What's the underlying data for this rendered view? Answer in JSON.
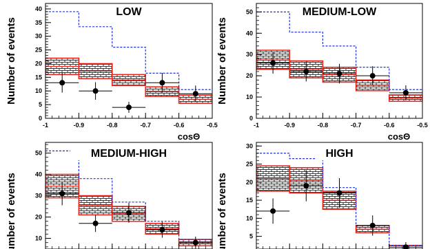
{
  "chart_data": [
    {
      "type": "histogram",
      "title": "LOW",
      "xlabel": "cosΘ",
      "ylabel": "Number of events",
      "xlim": [
        -1,
        -0.5
      ],
      "ylim": [
        0,
        42
      ],
      "xticks": [
        "-1",
        "-0.9",
        "-0.8",
        "-0.7",
        "-0.6",
        "-0.5"
      ],
      "yticks": [
        "0",
        "5",
        "10",
        "15",
        "20",
        "25",
        "30",
        "35",
        "40"
      ],
      "bin_edges": [
        -1.0,
        -0.9,
        -0.8,
        -0.7,
        -0.6,
        -0.5
      ],
      "series": [
        {
          "kind": "dashed-histogram",
          "values": [
            39,
            33.5,
            26,
            16.5,
            10.5
          ]
        },
        {
          "kind": "band",
          "low": [
            16,
            14.5,
            12,
            8,
            5.5
          ],
          "high": [
            22,
            20,
            16,
            11.5,
            8.5
          ]
        },
        {
          "kind": "data-points",
          "x": [
            -0.95,
            -0.85,
            -0.75,
            -0.65,
            -0.55
          ],
          "y": [
            13,
            10,
            4,
            13,
            9
          ],
          "yerr": [
            3.6,
            3.2,
            2.0,
            3.6,
            3.0
          ]
        }
      ]
    },
    {
      "type": "histogram",
      "title": "MEDIUM-LOW",
      "xlabel": "cosΘ",
      "ylabel": "Number of events",
      "xlim": [
        -1,
        -0.5
      ],
      "ylim": [
        0,
        54
      ],
      "xticks": [
        "-1",
        "-0.9",
        "-0.8",
        "-0.7",
        "-0.6",
        "-0.5"
      ],
      "yticks": [
        "0",
        "10",
        "20",
        "30",
        "40",
        "50"
      ],
      "bin_edges": [
        -1.0,
        -0.9,
        -0.8,
        -0.7,
        -0.6,
        -0.5
      ],
      "series": [
        {
          "kind": "dashed-histogram",
          "values": [
            50,
            40.5,
            34,
            24,
            13.5
          ]
        },
        {
          "kind": "band",
          "low": [
            23,
            19,
            17,
            13,
            8
          ],
          "high": [
            32,
            27,
            24,
            18,
            11
          ]
        },
        {
          "kind": "data-points",
          "x": [
            -0.95,
            -0.85,
            -0.75,
            -0.65,
            -0.55
          ],
          "y": [
            26,
            22,
            21,
            20,
            12
          ],
          "yerr": [
            5,
            4.7,
            4.6,
            4.5,
            3.5
          ]
        }
      ]
    },
    {
      "type": "histogram",
      "title": "MEDIUM-HIGH",
      "xlabel": "",
      "ylabel": "Number of events",
      "xlim": [
        -1,
        -0.5
      ],
      "ylim": [
        5,
        55
      ],
      "xticks": [],
      "yticks": [
        "10",
        "20",
        "30",
        "40",
        "50"
      ],
      "bin_edges": [
        -1.0,
        -0.9,
        -0.8,
        -0.7,
        -0.6,
        -0.5
      ],
      "series": [
        {
          "kind": "dashed-histogram",
          "values": [
            51,
            38,
            27,
            18,
            9.5
          ]
        },
        {
          "kind": "band",
          "low": [
            29,
            21,
            18,
            12,
            6.5
          ],
          "high": [
            40,
            30,
            25,
            17,
            9.5
          ]
        },
        {
          "kind": "data-points",
          "x": [
            -0.95,
            -0.85,
            -0.75,
            -0.65,
            -0.55
          ],
          "y": [
            31,
            17,
            22,
            14,
            8
          ],
          "yerr": [
            5.5,
            4,
            4.7,
            3.7,
            2.8
          ]
        }
      ]
    },
    {
      "type": "histogram",
      "title": "HIGH",
      "xlabel": "",
      "ylabel": "Number of events",
      "xlim": [
        -1,
        -0.5
      ],
      "ylim": [
        1.5,
        31
      ],
      "xticks": [],
      "yticks": [
        "5",
        "10",
        "15",
        "20",
        "25",
        "30"
      ],
      "bin_edges": [
        -1.0,
        -0.9,
        -0.8,
        -0.7,
        -0.6,
        -0.5
      ],
      "series": [
        {
          "kind": "dashed-histogram",
          "values": [
            28,
            26.5,
            18.5,
            8,
            2.5
          ]
        },
        {
          "kind": "band",
          "low": [
            17.5,
            17,
            12.5,
            6,
            2.5
          ],
          "high": [
            24.5,
            24,
            17.5,
            8,
            2.5
          ]
        },
        {
          "kind": "data-points",
          "x": [
            -0.95,
            -0.85,
            -0.75,
            -0.65,
            -0.55
          ],
          "y": [
            12,
            19,
            17,
            8,
            2
          ],
          "yerr": [
            3.5,
            4.3,
            4.1,
            2.8,
            1.4
          ]
        }
      ]
    }
  ]
}
